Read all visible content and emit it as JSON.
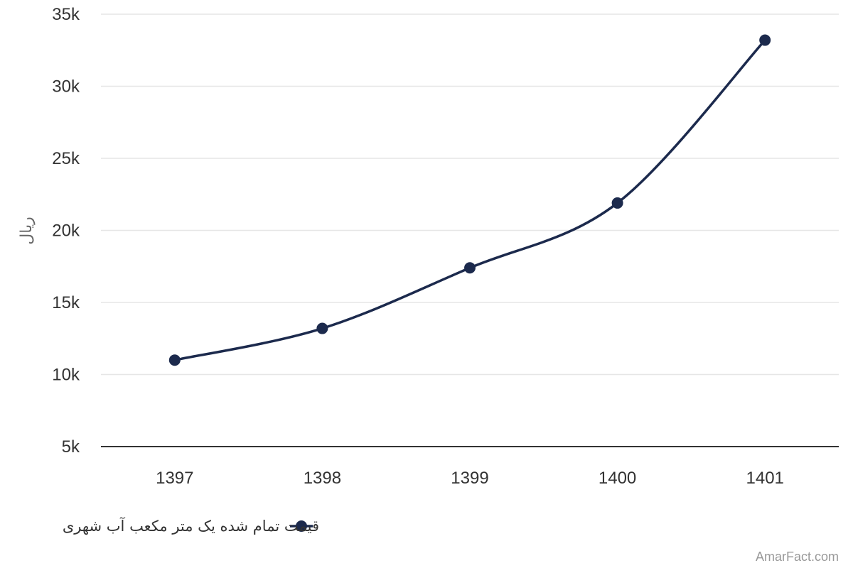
{
  "chart_data": {
    "type": "line",
    "title": "",
    "xlabel": "",
    "ylabel": "ریال",
    "categories": [
      "1397",
      "1398",
      "1399",
      "1400",
      "1401"
    ],
    "series": [
      {
        "name": "قیمت تمام شده یک متر مکعب آب شهری",
        "values": [
          11000,
          13200,
          17400,
          21900,
          33200
        ]
      }
    ],
    "ylim": [
      5000,
      35000
    ],
    "yticks": [
      5000,
      10000,
      15000,
      20000,
      25000,
      30000,
      35000
    ],
    "ytick_labels": [
      "5k",
      "10k",
      "15k",
      "20k",
      "25k",
      "30k",
      "35k"
    ],
    "grid": true,
    "legend_position": "bottom-center",
    "line_color": "#1c2a4d",
    "grid_color": "#e6e6e6",
    "axis_color": "#333333"
  },
  "credit": "AmarFact.com"
}
